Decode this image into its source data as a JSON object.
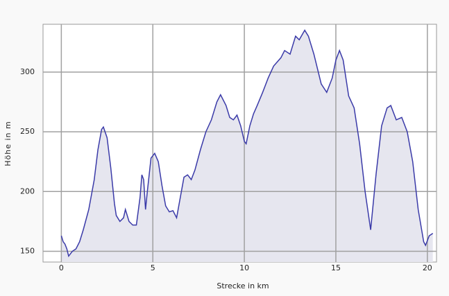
{
  "chart_data": {
    "type": "area",
    "xlabel": "Strecke in km",
    "ylabel": "Höhe in m",
    "x": [
      0,
      0.1,
      0.2,
      0.3,
      0.4,
      0.5,
      0.6,
      0.8,
      1.0,
      1.2,
      1.5,
      1.8,
      2.0,
      2.2,
      2.3,
      2.5,
      2.7,
      2.9,
      3.0,
      3.2,
      3.4,
      3.5,
      3.7,
      3.9,
      4.1,
      4.3,
      4.4,
      4.5,
      4.6,
      4.7,
      4.9,
      5.1,
      5.3,
      5.5,
      5.7,
      5.9,
      6.1,
      6.3,
      6.5,
      6.7,
      6.9,
      7.1,
      7.3,
      7.6,
      7.9,
      8.2,
      8.5,
      8.7,
      9.0,
      9.2,
      9.4,
      9.6,
      9.8,
      10.0,
      10.1,
      10.3,
      10.5,
      10.7,
      11.0,
      11.3,
      11.6,
      12.0,
      12.2,
      12.5,
      12.8,
      13.0,
      13.3,
      13.5,
      13.8,
      14.2,
      14.5,
      14.8,
      15.0,
      15.2,
      15.4,
      15.7,
      16.0,
      16.3,
      16.6,
      16.9,
      17.2,
      17.5,
      17.8,
      18.0,
      18.3,
      18.6,
      18.9,
      19.2,
      19.5,
      19.8,
      19.9,
      20.1,
      20.3
    ],
    "values": [
      163,
      158,
      156,
      152,
      146,
      148,
      150,
      152,
      158,
      168,
      185,
      210,
      235,
      252,
      254,
      245,
      220,
      190,
      180,
      175,
      178,
      185,
      175,
      172,
      172,
      195,
      214,
      210,
      185,
      200,
      228,
      232,
      225,
      205,
      188,
      183,
      184,
      178,
      195,
      212,
      214,
      210,
      218,
      235,
      250,
      260,
      275,
      281,
      272,
      262,
      260,
      264,
      255,
      242,
      240,
      255,
      265,
      272,
      283,
      295,
      305,
      312,
      318,
      315,
      330,
      327,
      335,
      330,
      315,
      290,
      283,
      295,
      310,
      318,
      310,
      280,
      270,
      240,
      200,
      168,
      215,
      255,
      270,
      272,
      260,
      262,
      250,
      225,
      185,
      158,
      155,
      163,
      165
    ],
    "color": "#3a3aa8",
    "fill_color": "#e6e6ef",
    "xlim": [
      -1,
      20.5
    ],
    "xticks": [
      0,
      5,
      10,
      15,
      20
    ],
    "ylim": [
      141,
      340
    ],
    "yticks": [
      150,
      200,
      250,
      300
    ],
    "grid": true
  }
}
